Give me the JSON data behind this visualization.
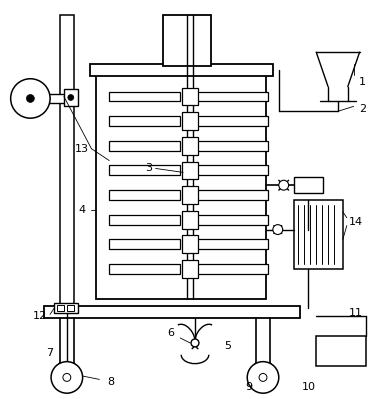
{
  "bg_color": "#ffffff",
  "line_color": "#000000",
  "lw": 1.0,
  "fig_w": 3.89,
  "fig_h": 3.99,
  "xlim": [
    0,
    389
  ],
  "ylim": [
    0,
    399
  ]
}
